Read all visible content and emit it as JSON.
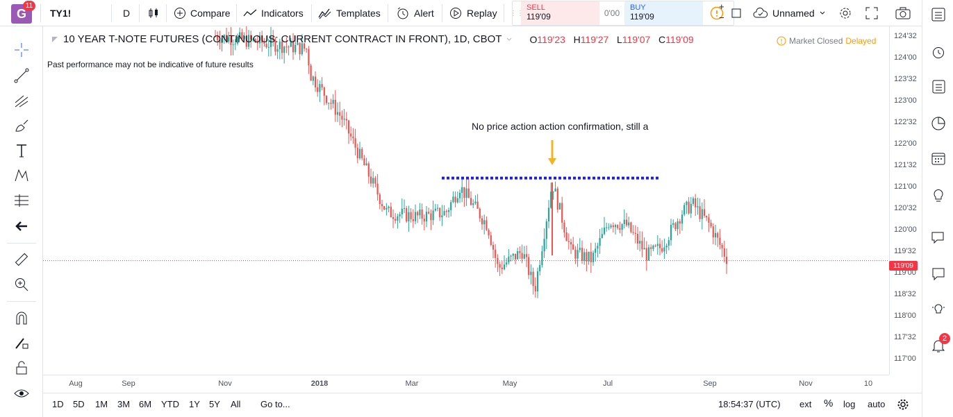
{
  "header": {
    "logo_letter": "G",
    "logo_badge": "11",
    "symbol": "TY1!",
    "interval": "D",
    "compare": "Compare",
    "indicators": "Indicators",
    "templates": "Templates",
    "alert": "Alert",
    "replay": "Replay",
    "sell_label": "SELL",
    "sell_price": "119'09",
    "spread": "0'00",
    "buy_label": "BUY",
    "buy_price": "119'09",
    "layout_name": "Unnamed"
  },
  "legend": {
    "title": "10 YEAR T-NOTE FUTURES (CONTINUOUS: CURRENT CONTRACT IN FRONT), 1D, CBOT",
    "o_label": "O",
    "o_value": "119'23",
    "h_label": "H",
    "h_value": "119'27",
    "l_label": "L",
    "l_value": "119'07",
    "c_label": "C",
    "c_value": "119'09"
  },
  "status": {
    "market_closed": "Market Closed",
    "delayed": "Delayed"
  },
  "disclaimer": "Past performance may not be indicative of future results",
  "annotation": "No price action action confirmation, still a",
  "price_axis": {
    "labels": [
      "124'32",
      "124'00",
      "123'32",
      "123'00",
      "122'32",
      "122'00",
      "121'32",
      "121'00",
      "120'32",
      "120'00",
      "119'32",
      "119'00",
      "118'32",
      "118'00",
      "117'32",
      "117'00"
    ],
    "current_price": "119'09"
  },
  "time_axis": {
    "labels": [
      "Aug",
      "Sep",
      "Nov",
      "2018",
      "Mar",
      "May",
      "Jul",
      "Sep",
      "Nov",
      "10"
    ]
  },
  "bottom": {
    "ranges": [
      "1D",
      "5D",
      "1M",
      "3M",
      "6M",
      "YTD",
      "1Y",
      "5Y",
      "All"
    ],
    "goto": "Go to...",
    "clock": "18:54:37 (UTC)",
    "ext": "ext",
    "percent": "%",
    "log": "log",
    "auto": "auto"
  },
  "right_sidebar": {
    "notification_count": "2"
  },
  "colors": {
    "up": "#26a69a",
    "down": "#ef5350",
    "resistance_line": "#1a1aff",
    "arrow": "#f0b429",
    "price_line": "#f23645"
  },
  "chart_data": {
    "type": "candlestick",
    "instrument": "TY1!",
    "current_price": 119.28,
    "resistance_level": 121.2,
    "price_range": [
      116.8,
      124.7
    ],
    "series_close_approx": [
      {
        "x": "late Oct",
        "y": 124.5
      },
      {
        "x": "Dec",
        "y": 124.2
      },
      {
        "x": "Jan",
        "y": 123.6
      },
      {
        "x": "late Jan",
        "y": 122.6
      },
      {
        "x": "Feb",
        "y": 121.5
      },
      {
        "x": "mid Feb",
        "y": 120.4
      },
      {
        "x": "Mar",
        "y": 120.3
      },
      {
        "x": "early Apr",
        "y": 120.4
      },
      {
        "x": "mid Apr",
        "y": 121.0
      },
      {
        "x": "late Apr",
        "y": 120.1
      },
      {
        "x": "early May",
        "y": 119.1
      },
      {
        "x": "mid May",
        "y": 119.5
      },
      {
        "x": "late May",
        "y": 118.6
      },
      {
        "x": "end May",
        "y": 121.1
      },
      {
        "x": "early Jun",
        "y": 119.5
      },
      {
        "x": "mid Jun",
        "y": 119.3
      },
      {
        "x": "late Jun",
        "y": 120.2
      },
      {
        "x": "early Jul",
        "y": 120.1
      },
      {
        "x": "mid Jul",
        "y": 119.4
      },
      {
        "x": "late Jul",
        "y": 119.6
      },
      {
        "x": "early Aug",
        "y": 120.4
      },
      {
        "x": "mid Aug",
        "y": 120.6
      },
      {
        "x": "late Aug",
        "y": 120.1
      },
      {
        "x": "early Sep",
        "y": 119.28
      }
    ]
  }
}
